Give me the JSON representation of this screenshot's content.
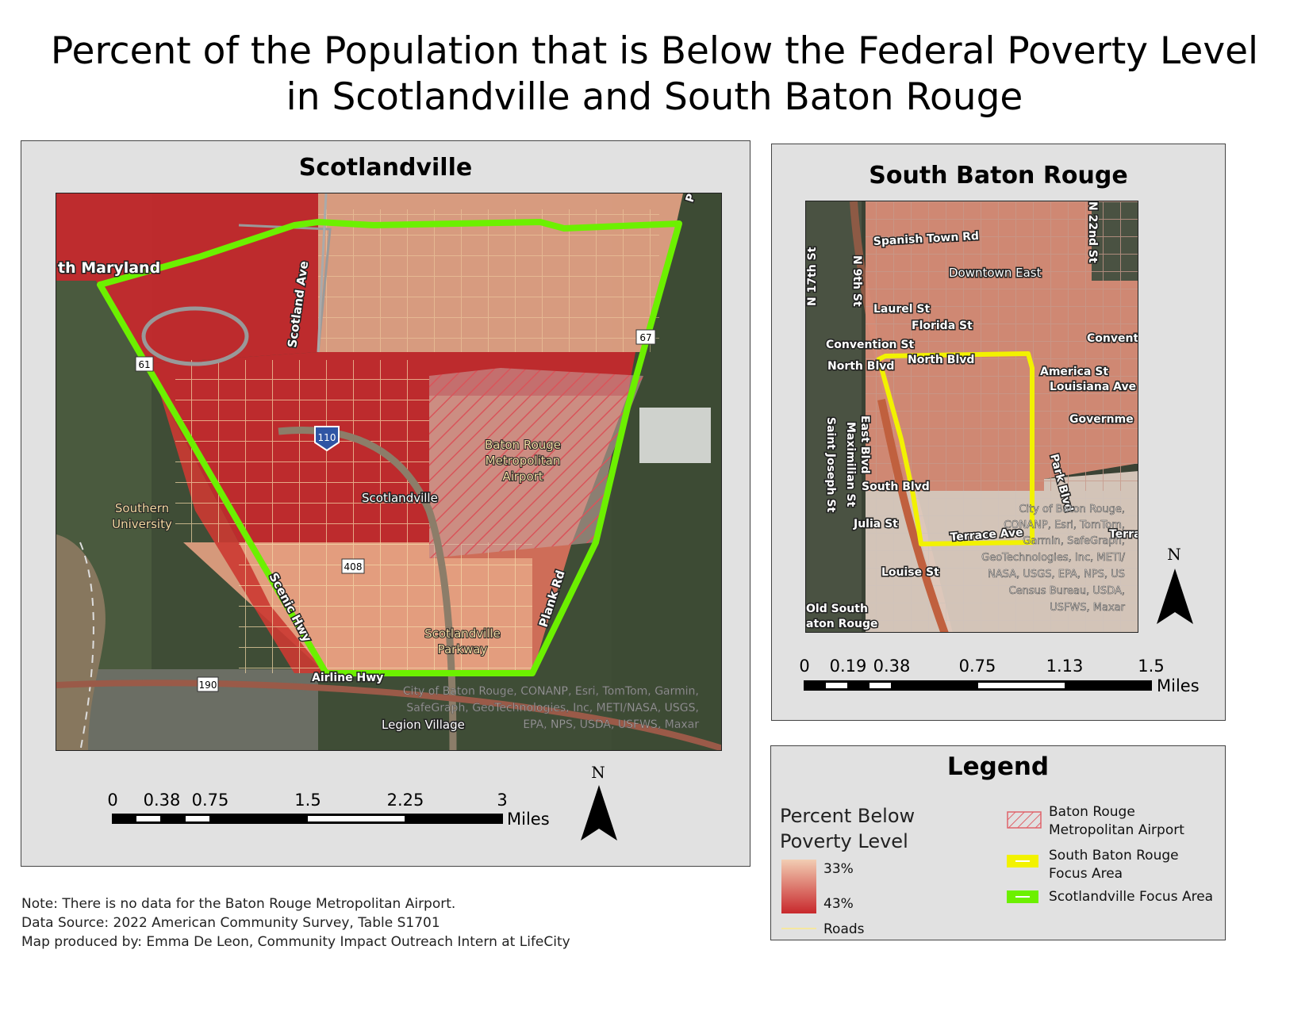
{
  "title": {
    "line1": "Percent of the Population that is Below the Federal Poverty Level",
    "line2": "in Scotlandville and South Baton Rouge"
  },
  "scotlandville": {
    "heading": "Scotlandville",
    "labels": {
      "maryland": "th Maryland",
      "scotland_ave": "Scotland Ave",
      "hwy61": "61",
      "hwy67": "67",
      "i110": "110",
      "airport": [
        "Baton Rouge",
        "Metropolitan",
        "Airport"
      ],
      "scotlandville": "Scotlandville",
      "southern_university": [
        "Southern",
        "University"
      ],
      "hwy408": "408",
      "scenic_hwy": "Scenic Hwy",
      "plank_rd": "Plank Rd",
      "parkway": [
        "Scotlandville",
        "Parkway"
      ],
      "airline_hwy": "Airline Hwy",
      "hwy190": "190",
      "legion_village": "Legion Village",
      "corner_p": "P"
    },
    "attribution": [
      "City of Baton Rouge, CONANP, Esri, TomTom, Garmin,",
      "SafeGraph, GeoTechnologies, Inc, METI/NASA, USGS,",
      "EPA, NPS, USDA, USFWS, Maxar"
    ],
    "scale": {
      "ticks": [
        "0",
        "0.38",
        "0.75",
        "1.5",
        "2.25",
        "3"
      ],
      "unit": "Miles"
    },
    "north": "N"
  },
  "south_baton_rouge": {
    "heading": "South Baton Rouge",
    "labels": {
      "spanish_town": "Spanish Town Rd",
      "n22nd": "N 22nd St",
      "n17th": "N 17th St",
      "n9th": "N 9th St",
      "downtown_east": "Downtown East",
      "laurel": "Laurel St",
      "florida": "Florida St",
      "convention": "Convention St",
      "convent": "Convent",
      "north_blvd_1": "North Blvd",
      "north_blvd_2": "North Blvd",
      "america": "America St",
      "louisiana": "Louisiana Ave",
      "government": "Governme",
      "east_blvd": "East Blvd",
      "maximilian": "Maximilian St",
      "saint_joseph": "Saint Joseph St",
      "south_blvd": "South Blvd",
      "park_blvd": "Park Blvd",
      "julia": "Julia St",
      "terrace": "Terrace Ave",
      "terrac": "Terrac",
      "louise": "Louise St",
      "old_south_1": "Old South",
      "old_south_2": "aton Rouge"
    },
    "attribution": [
      "City of Baton Rouge,",
      "CONANP, Esri, TomTom,",
      "Garmin, SafeGraph,",
      "GeoTechnologies, Inc, METI/",
      "NASA, USGS, EPA, NPS, US",
      "Census Bureau, USDA,",
      "USFWS, Maxar"
    ],
    "scale": {
      "ticks": [
        "0",
        "0.19",
        "0.38",
        "0.75",
        "1.13",
        "1.5"
      ],
      "unit": "Miles"
    },
    "north": "N"
  },
  "legend": {
    "title": "Legend",
    "ramp_title": [
      "Percent Below",
      "Poverty Level"
    ],
    "ramp_high": "33%",
    "ramp_low": "43%",
    "roads": "Roads",
    "airport": [
      "Baton Rouge",
      "Metropolitan Airport"
    ],
    "south_focus": [
      "South Baton Rouge",
      "Focus Area"
    ],
    "scot_focus": "Scotlandville Focus Area"
  },
  "colors": {
    "high_poverty": "#c8282c",
    "mid_poverty": "#d9705a",
    "low_poverty": "#e9b79d",
    "scotlandville_focus": "#6cf000",
    "south_focus": "#f2f200",
    "roads": "#f5d9a8"
  },
  "notes": [
    "Note: There is no data for the Baton Rouge Metropolitan Airport.",
    "Data Source: 2022 American Community Survey, Table S1701",
    "Map produced by: Emma De Leon, Community Impact Outreach Intern at LifeCity"
  ]
}
